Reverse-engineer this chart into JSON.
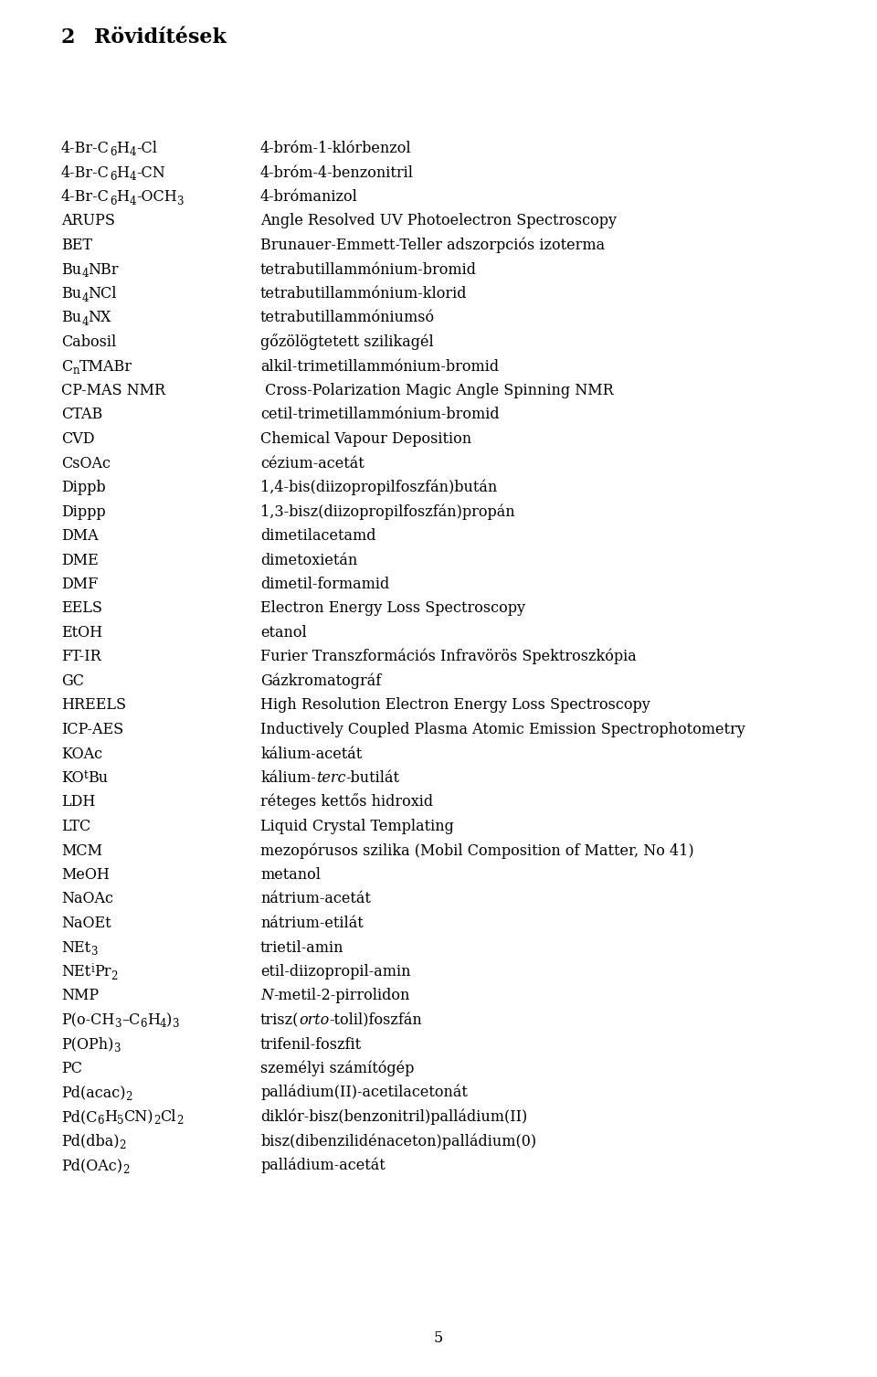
{
  "title_number": "2",
  "title_text": "Rövidítések",
  "bg_color": "#ffffff",
  "text_color": "#000000",
  "entries": [
    {
      "abbr_parts": [
        [
          "4-Br-C",
          "n"
        ],
        [
          "6",
          "s"
        ],
        [
          "H",
          "n"
        ],
        [
          "4",
          "s"
        ],
        [
          "-Cl",
          "n"
        ]
      ],
      "definition": "4-bróm-1-klórbenzol",
      "def_parts": [
        [
          "4-bróm-1-klórbenzol",
          "n"
        ]
      ]
    },
    {
      "abbr_parts": [
        [
          "4-Br-C",
          "n"
        ],
        [
          "6",
          "s"
        ],
        [
          "H",
          "n"
        ],
        [
          "4",
          "s"
        ],
        [
          "-CN",
          "n"
        ]
      ],
      "definition": "4-bróm-4-benzonitril",
      "def_parts": [
        [
          "4-bróm-4-benzonitril",
          "n"
        ]
      ]
    },
    {
      "abbr_parts": [
        [
          "4-Br-C",
          "n"
        ],
        [
          "6",
          "s"
        ],
        [
          "H",
          "n"
        ],
        [
          "4",
          "s"
        ],
        [
          "-OCH",
          "n"
        ],
        [
          "3",
          "s"
        ]
      ],
      "definition": "4-brómanizol",
      "def_parts": [
        [
          "4-brómanizol",
          "n"
        ]
      ]
    },
    {
      "abbr_parts": [
        [
          "ARUPS",
          "n"
        ]
      ],
      "def_parts": [
        [
          "Angle Resolved UV Photoelectron Spectroscopy",
          "n"
        ]
      ]
    },
    {
      "abbr_parts": [
        [
          "BET",
          "n"
        ]
      ],
      "def_parts": [
        [
          "Brunauer-Emmett-Teller adszorpciós izoterma",
          "n"
        ]
      ]
    },
    {
      "abbr_parts": [
        [
          "Bu",
          "n"
        ],
        [
          "4",
          "s"
        ],
        [
          "NBr",
          "n"
        ]
      ],
      "def_parts": [
        [
          "tetrabutillammónium-bromid",
          "n"
        ]
      ]
    },
    {
      "abbr_parts": [
        [
          "Bu",
          "n"
        ],
        [
          "4",
          "s"
        ],
        [
          "NCl",
          "n"
        ]
      ],
      "def_parts": [
        [
          "tetrabutillammónium-klorid",
          "n"
        ]
      ]
    },
    {
      "abbr_parts": [
        [
          "Bu",
          "n"
        ],
        [
          "4",
          "s"
        ],
        [
          "NX",
          "n"
        ]
      ],
      "def_parts": [
        [
          "tetrabutillammóniumsó",
          "n"
        ]
      ]
    },
    {
      "abbr_parts": [
        [
          "Cabosil",
          "n"
        ]
      ],
      "def_parts": [
        [
          "gőzölögtetett szilikagél",
          "n"
        ]
      ]
    },
    {
      "abbr_parts": [
        [
          "C",
          "n"
        ],
        [
          "n",
          "s"
        ],
        [
          "TMABr",
          "n"
        ]
      ],
      "def_parts": [
        [
          "alkil-trimetillammónium-bromid",
          "n"
        ]
      ]
    },
    {
      "abbr_parts": [
        [
          "CP-MAS NMR",
          "n"
        ]
      ],
      "def_parts": [
        [
          " Cross-Polarization Magic Angle Spinning NMR",
          "n"
        ]
      ]
    },
    {
      "abbr_parts": [
        [
          "CTAB",
          "n"
        ]
      ],
      "def_parts": [
        [
          "cetil-trimetillammónium-bromid",
          "n"
        ]
      ]
    },
    {
      "abbr_parts": [
        [
          "CVD",
          "n"
        ]
      ],
      "def_parts": [
        [
          "Chemical Vapour Deposition",
          "n"
        ]
      ]
    },
    {
      "abbr_parts": [
        [
          "CsOAc",
          "n"
        ]
      ],
      "def_parts": [
        [
          "cézium-acetát",
          "n"
        ]
      ]
    },
    {
      "abbr_parts": [
        [
          "Dippb",
          "n"
        ]
      ],
      "def_parts": [
        [
          "1,4-bis(diizopropilfoszfán)bután",
          "n"
        ]
      ]
    },
    {
      "abbr_parts": [
        [
          "Dippp",
          "n"
        ]
      ],
      "def_parts": [
        [
          "1,3-bisz(diizopropilfoszfán)propán",
          "n"
        ]
      ]
    },
    {
      "abbr_parts": [
        [
          "DMA",
          "n"
        ]
      ],
      "def_parts": [
        [
          "dimetilacetamd",
          "n"
        ]
      ]
    },
    {
      "abbr_parts": [
        [
          "DME",
          "n"
        ]
      ],
      "def_parts": [
        [
          "dimetoxietán",
          "n"
        ]
      ]
    },
    {
      "abbr_parts": [
        [
          "DMF",
          "n"
        ]
      ],
      "def_parts": [
        [
          "dimetil-formamid",
          "n"
        ]
      ]
    },
    {
      "abbr_parts": [
        [
          "EELS",
          "n"
        ]
      ],
      "def_parts": [
        [
          "Electron Energy Loss Spectroscopy",
          "n"
        ]
      ]
    },
    {
      "abbr_parts": [
        [
          "EtOH",
          "n"
        ]
      ],
      "def_parts": [
        [
          "etanol",
          "n"
        ]
      ]
    },
    {
      "abbr_parts": [
        [
          "FT-IR",
          "n"
        ]
      ],
      "def_parts": [
        [
          "Furier Transzformációs Infravörös Spektroszkópia",
          "n"
        ]
      ]
    },
    {
      "abbr_parts": [
        [
          "GC",
          "n"
        ]
      ],
      "def_parts": [
        [
          "Gázkromatográf",
          "n"
        ]
      ]
    },
    {
      "abbr_parts": [
        [
          "HREELS",
          "n"
        ]
      ],
      "def_parts": [
        [
          "High Resolution Electron Energy Loss Spectroscopy",
          "n"
        ]
      ]
    },
    {
      "abbr_parts": [
        [
          "ICP-AES",
          "n"
        ]
      ],
      "def_parts": [
        [
          "Inductively Coupled Plasma Atomic Emission Spectrophotometry",
          "n"
        ]
      ]
    },
    {
      "abbr_parts": [
        [
          "KOAc",
          "n"
        ]
      ],
      "def_parts": [
        [
          "kálium-acetát",
          "n"
        ]
      ]
    },
    {
      "abbr_parts": [
        [
          "KO",
          "n"
        ],
        [
          "t",
          "sup"
        ],
        [
          "Bu",
          "n"
        ]
      ],
      "def_parts": [
        [
          "kálium-",
          "n"
        ],
        [
          "terc",
          "i"
        ],
        [
          "-butilát",
          "n"
        ]
      ]
    },
    {
      "abbr_parts": [
        [
          "LDH",
          "n"
        ]
      ],
      "def_parts": [
        [
          "réteges kettős hidroxid",
          "n"
        ]
      ]
    },
    {
      "abbr_parts": [
        [
          "LTC",
          "n"
        ]
      ],
      "def_parts": [
        [
          "Liquid Crystal Templating",
          "n"
        ]
      ]
    },
    {
      "abbr_parts": [
        [
          "MCM",
          "n"
        ]
      ],
      "def_parts": [
        [
          "mezopórusos szilika (Mobil Composition of Matter, No 41)",
          "n"
        ]
      ]
    },
    {
      "abbr_parts": [
        [
          "MeOH",
          "n"
        ]
      ],
      "def_parts": [
        [
          "metanol",
          "n"
        ]
      ]
    },
    {
      "abbr_parts": [
        [
          "NaOAc",
          "n"
        ]
      ],
      "def_parts": [
        [
          "nátrium-acetát",
          "n"
        ]
      ]
    },
    {
      "abbr_parts": [
        [
          "NaOEt",
          "n"
        ]
      ],
      "def_parts": [
        [
          "nátrium-etilát",
          "n"
        ]
      ]
    },
    {
      "abbr_parts": [
        [
          "NEt",
          "n"
        ],
        [
          "3",
          "s"
        ]
      ],
      "def_parts": [
        [
          "trietil-amin",
          "n"
        ]
      ]
    },
    {
      "abbr_parts": [
        [
          "NEt",
          "n"
        ],
        [
          "i",
          "sup"
        ],
        [
          "Pr",
          "n"
        ],
        [
          "2",
          "s"
        ]
      ],
      "def_parts": [
        [
          "etil-diizopropil-amin",
          "n"
        ]
      ]
    },
    {
      "abbr_parts": [
        [
          "NMP",
          "n"
        ]
      ],
      "def_parts": [
        [
          "N",
          "i"
        ],
        [
          "-metil-2-pirrolidon",
          "n"
        ]
      ]
    },
    {
      "abbr_parts": [
        [
          "P(o-CH",
          "n"
        ],
        [
          "3",
          "s"
        ],
        [
          "–C",
          "n"
        ],
        [
          "6",
          "s"
        ],
        [
          "H",
          "n"
        ],
        [
          "4",
          "s"
        ],
        [
          ")",
          "n"
        ],
        [
          "3",
          "s"
        ]
      ],
      "def_parts": [
        [
          "trisz(",
          "n"
        ],
        [
          "orto",
          "i"
        ],
        [
          "-tolil)foszfán",
          "n"
        ]
      ]
    },
    {
      "abbr_parts": [
        [
          "P(OPh)",
          "n"
        ],
        [
          "3",
          "s"
        ]
      ],
      "def_parts": [
        [
          "trifenil-foszfit",
          "n"
        ]
      ]
    },
    {
      "abbr_parts": [
        [
          "PC",
          "n"
        ]
      ],
      "def_parts": [
        [
          "személyi számítógép",
          "n"
        ]
      ]
    },
    {
      "abbr_parts": [
        [
          "Pd(acac)",
          "n"
        ],
        [
          "2",
          "s"
        ]
      ],
      "def_parts": [
        [
          "palládium(II)-acetilacetonát",
          "n"
        ]
      ]
    },
    {
      "abbr_parts": [
        [
          "Pd(C",
          "n"
        ],
        [
          "6",
          "s"
        ],
        [
          "H",
          "n"
        ],
        [
          "5",
          "s"
        ],
        [
          "CN)",
          "n"
        ],
        [
          "2",
          "s"
        ],
        [
          "Cl",
          "n"
        ],
        [
          "2",
          "s"
        ]
      ],
      "def_parts": [
        [
          "diklór-bisz(benzonitril)palládium(II)",
          "n"
        ]
      ]
    },
    {
      "abbr_parts": [
        [
          "Pd(dba)",
          "n"
        ],
        [
          "2",
          "s"
        ]
      ],
      "def_parts": [
        [
          "bisz(dibenzilidénaceton)palládium(0)",
          "n"
        ]
      ]
    },
    {
      "abbr_parts": [
        [
          "Pd(OAc)",
          "n"
        ],
        [
          "2",
          "s"
        ]
      ],
      "def_parts": [
        [
          "palládium-acetát",
          "n"
        ]
      ]
    }
  ],
  "page_number": "5"
}
